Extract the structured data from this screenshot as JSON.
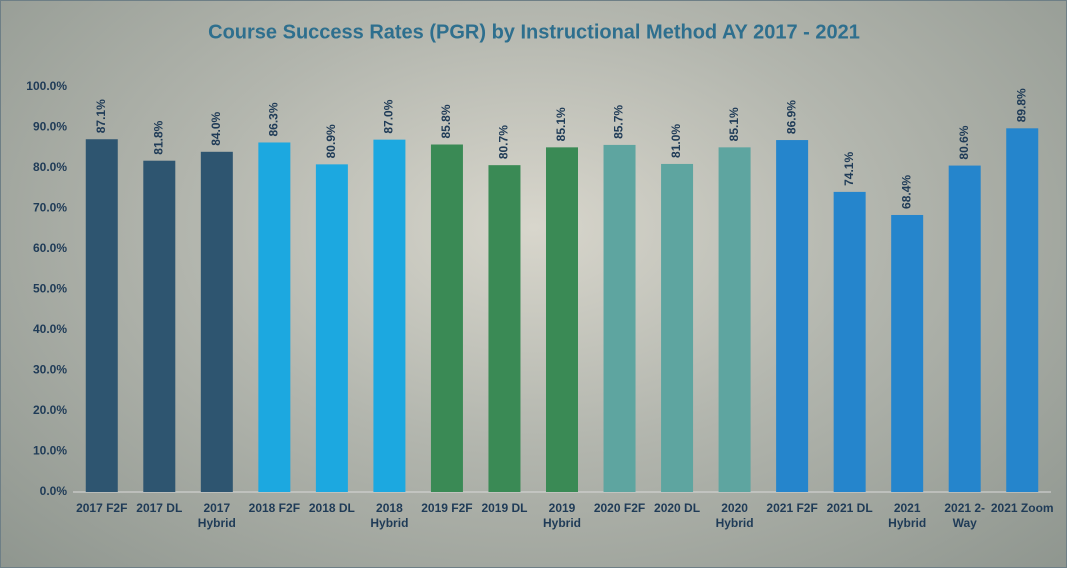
{
  "chart_data": {
    "type": "bar",
    "title": "Course Success Rates (PGR) by Instructional Method AY 2017 - 2021",
    "categories": [
      "2017 F2F",
      "2017 DL",
      "2017 Hybrid",
      "2018 F2F",
      "2018 DL",
      "2018 Hybrid",
      "2019 F2F",
      "2019 DL",
      "2019 Hybrid",
      "2020 F2F",
      "2020 DL",
      "2020 Hybrid",
      "2021 F2F",
      "2021 DL",
      "2021 Hybrid",
      "2021 2-Way",
      "2021 Zoom"
    ],
    "values": [
      87.1,
      81.8,
      84.0,
      86.3,
      80.9,
      87.0,
      85.8,
      80.7,
      85.1,
      85.7,
      81.0,
      85.1,
      86.9,
      74.1,
      68.4,
      80.6,
      89.8
    ],
    "value_labels": [
      "87.1%",
      "81.8%",
      "84.0%",
      "86.3%",
      "80.9%",
      "87.0%",
      "85.8%",
      "80.7%",
      "85.1%",
      "85.7%",
      "81.0%",
      "85.1%",
      "86.9%",
      "74.1%",
      "68.4%",
      "80.6%",
      "89.8%"
    ],
    "colors": [
      "#2e5570",
      "#2e5570",
      "#2e5570",
      "#1ca8e0",
      "#1ca8e0",
      "#1ca8e0",
      "#3a8a55",
      "#3a8a55",
      "#3a8a55",
      "#5ea5a0",
      "#5ea5a0",
      "#5ea5a0",
      "#2585cc",
      "#2585cc",
      "#2585cc",
      "#2585cc",
      "#2585cc"
    ],
    "ylim": [
      0,
      100
    ],
    "yticks": [
      {
        "value": 0,
        "label": "0.0%"
      },
      {
        "value": 10,
        "label": "10.0%"
      },
      {
        "value": 20,
        "label": "20.0%"
      },
      {
        "value": 30,
        "label": "30.0%"
      },
      {
        "value": 40,
        "label": "40.0%"
      },
      {
        "value": 50,
        "label": "50.0%"
      },
      {
        "value": 60,
        "label": "60.0%"
      },
      {
        "value": 70,
        "label": "70.0%"
      },
      {
        "value": 80,
        "label": "80.0%"
      },
      {
        "value": 90,
        "label": "90.0%"
      },
      {
        "value": 100,
        "label": "100.0%"
      }
    ]
  }
}
